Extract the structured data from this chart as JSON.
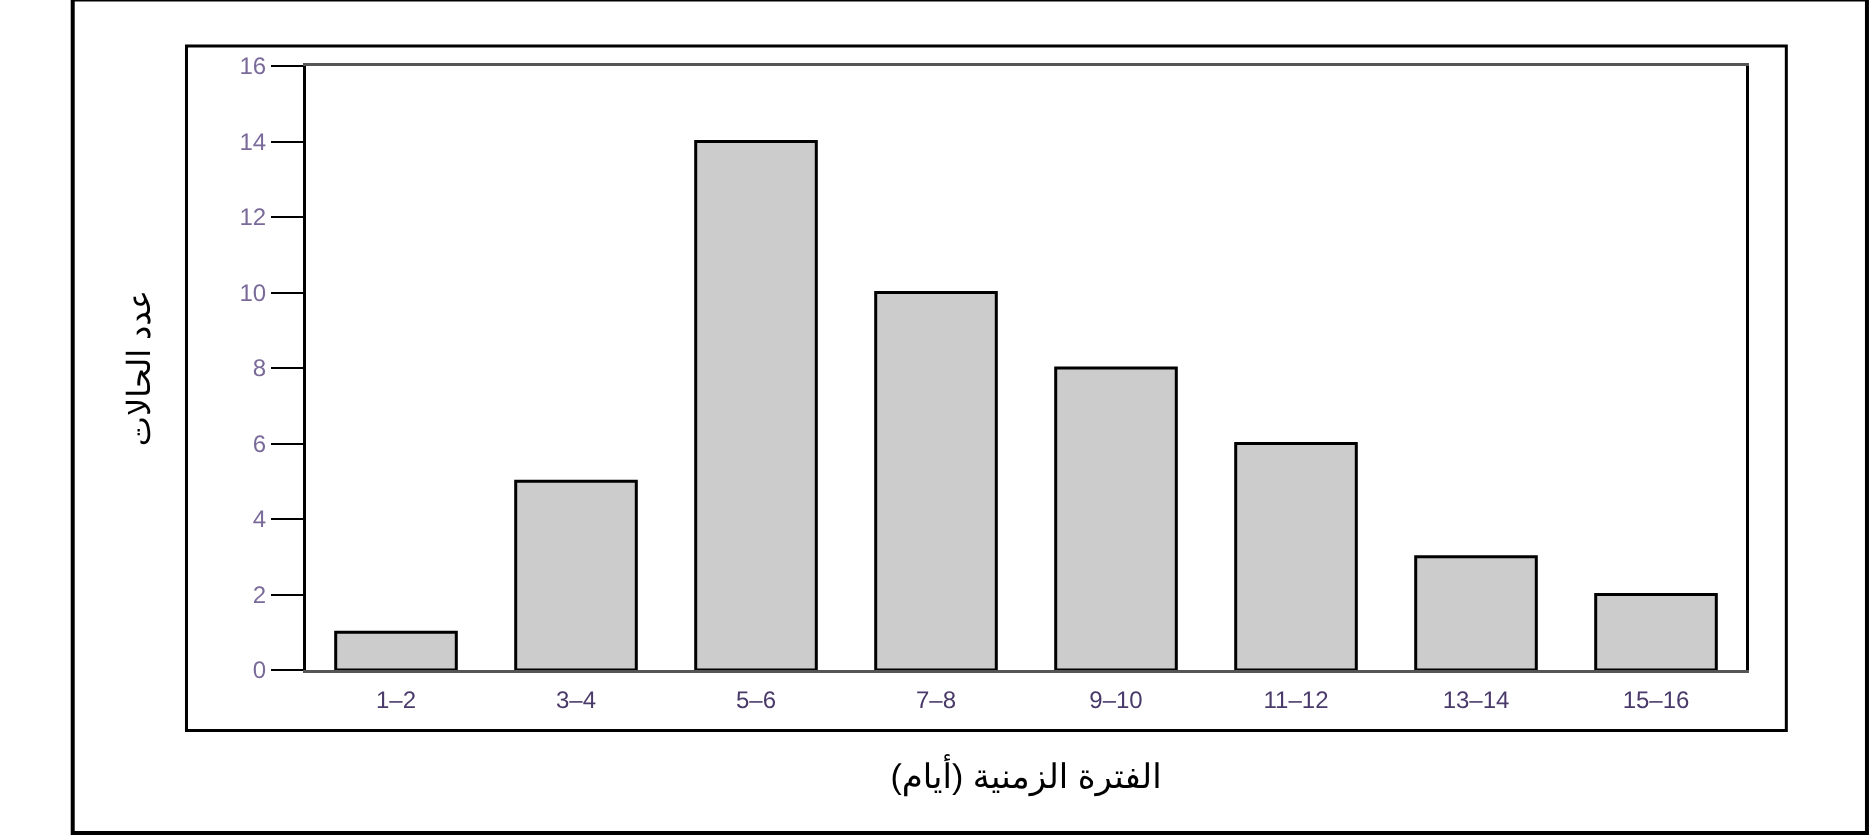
{
  "chart_data": {
    "type": "bar",
    "xlabel": "الفترة الزمنية (أيام)",
    "ylabel": "عدد الحالات",
    "categories": [
      "1–2",
      "3–4",
      "5–6",
      "7–8",
      "9–10",
      "11–12",
      "13–14",
      "15–16"
    ],
    "values": [
      1,
      5,
      14,
      10,
      8,
      6,
      3,
      2
    ],
    "color": "#cccccc",
    "ylim": [
      0,
      16
    ],
    "yticks": [
      0,
      2,
      4,
      6,
      8,
      10,
      12,
      14,
      16
    ],
    "grid": false
  }
}
